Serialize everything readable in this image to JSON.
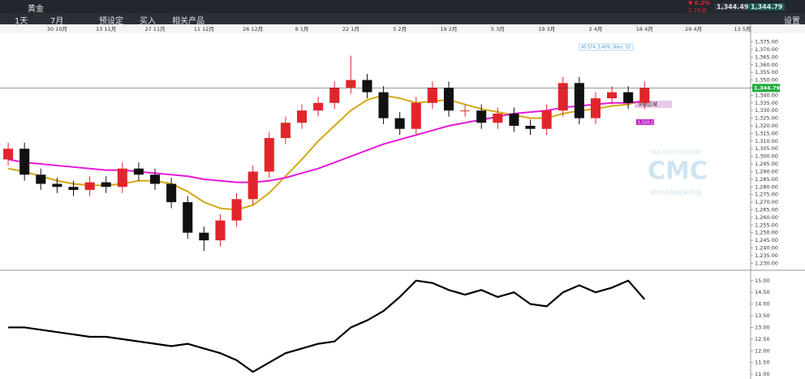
{
  "toolbar": {
    "instrument": "黄金",
    "interval": "1天",
    "range": "7月",
    "preset": "预设定",
    "buy": "买入",
    "related": "相关产品",
    "change_pct": "0.2%",
    "change_pts": "2.78点",
    "bid": "1,344.49",
    "ask": "1,344.79",
    "settings": "设置"
  },
  "annotations": {
    "measure": "45.574, 3.40%, Bars, 33",
    "zone": "突破区域",
    "level": "1,320.21",
    "watermark_top": "TRD PLATFORM BY",
    "watermark_logo": "CMC",
    "watermark_bottom": "stockbroking"
  },
  "chart_data": [
    {
      "type": "candlestick",
      "up_color": "#e0262b",
      "down_color": "#111111",
      "categories": [
        null,
        null,
        null,
        "30 10月",
        null,
        null,
        "13 11月",
        null,
        null,
        "27 11月",
        null,
        null,
        "11 12月",
        null,
        null,
        "26 12月",
        null,
        null,
        "8 1月",
        null,
        null,
        "22 1月",
        null,
        null,
        "5 2月",
        null,
        null,
        "19 2月",
        null,
        null,
        "5 3月",
        null,
        null,
        "19 3月",
        null,
        null,
        "2 4月",
        null,
        null,
        "16 4月",
        null,
        null,
        "29 4月",
        null,
        null,
        "13 5月"
      ],
      "open": [
        1298,
        1305,
        1288,
        1282,
        1280,
        1278,
        1283,
        1280,
        1292,
        1288,
        1282,
        1270,
        1250,
        1245,
        1258,
        1272,
        1290,
        1312,
        1322,
        1330,
        1335,
        1345,
        1350,
        1342,
        1325,
        1318,
        1335,
        1345,
        1330,
        1330,
        1322,
        1328,
        1320,
        1318,
        1330,
        1348,
        1325,
        1338,
        1342,
        1335,
        null,
        null,
        null,
        null,
        null,
        null
      ],
      "high": [
        1309,
        1309,
        1292,
        1286,
        1284,
        1287,
        1287,
        1296,
        1296,
        1292,
        1286,
        1274,
        1254,
        1262,
        1276,
        1294,
        1316,
        1326,
        1334,
        1339,
        1349,
        1366,
        1354,
        1346,
        1329,
        1339,
        1349,
        1349,
        1334,
        1334,
        1332,
        1332,
        1324,
        1334,
        1352,
        1352,
        1342,
        1346,
        1346,
        1349,
        null,
        null,
        null,
        null,
        null,
        null
      ],
      "low": [
        1294,
        1284,
        1278,
        1276,
        1274,
        1274,
        1276,
        1276,
        1284,
        1278,
        1266,
        1246,
        1238,
        1241,
        1254,
        1268,
        1286,
        1308,
        1318,
        1326,
        1331,
        1341,
        1338,
        1321,
        1314,
        1314,
        1331,
        1326,
        1326,
        1318,
        1318,
        1316,
        1314,
        1314,
        1326,
        1321,
        1321,
        1334,
        1331,
        1331,
        null,
        null,
        null,
        null,
        null,
        null
      ],
      "close": [
        1305,
        1288,
        1282,
        1280,
        1278,
        1283,
        1280,
        1292,
        1288,
        1282,
        1270,
        1250,
        1245,
        1258,
        1272,
        1290,
        1312,
        1322,
        1330,
        1335,
        1345,
        1350,
        1342,
        1325,
        1318,
        1335,
        1345,
        1330,
        1330,
        1322,
        1328,
        1320,
        1318,
        1330,
        1348,
        1325,
        1338,
        1342,
        1335,
        1344.79,
        null,
        null,
        null,
        null,
        null,
        null
      ],
      "series": [
        {
          "color": "#d4a814",
          "values": [
            1292,
            1290,
            1287,
            1284,
            1282,
            1281,
            1281,
            1282,
            1284,
            1284,
            1282,
            1277,
            1270,
            1266,
            1265,
            1268,
            1276,
            1287,
            1298,
            1310,
            1320,
            1330,
            1337,
            1340,
            1338,
            1335,
            1336,
            1337,
            1334,
            1331,
            1329,
            1327,
            1325,
            1325,
            1328,
            1330,
            1331,
            1333,
            1334,
            1337,
            null,
            null,
            null,
            null,
            null,
            null
          ]
        },
        {
          "color": "#e619d8",
          "values": [
            1298,
            1296,
            1295,
            1294,
            1293,
            1292,
            1291,
            1291,
            1290,
            1289,
            1288,
            1287,
            1285,
            1284,
            1283,
            1283,
            1284,
            1286,
            1289,
            1292,
            1296,
            1300,
            1304,
            1308,
            1311,
            1314,
            1317,
            1320,
            1322,
            1324,
            1326,
            1328,
            1329,
            1330,
            1332,
            1333,
            1334,
            1335,
            1335,
            1336,
            null,
            null,
            null,
            null,
            null,
            null
          ]
        }
      ],
      "last_price": {
        "value": 1344.79,
        "label": "1,344.79"
      },
      "ylim": [
        1227,
        1379
      ],
      "yticks": [
        {
          "value": 1230,
          "label": "1,230.00"
        },
        {
          "value": 1235,
          "label": "1,235.00"
        },
        {
          "value": 1240,
          "label": "1,240.00"
        },
        {
          "value": 1245,
          "label": "1,245.00"
        },
        {
          "value": 1250,
          "label": "1,250.00"
        },
        {
          "value": 1255,
          "label": "1,255.00"
        },
        {
          "value": 1260,
          "label": "1,260.00"
        },
        {
          "value": 1265,
          "label": "1,265.00"
        },
        {
          "value": 1270,
          "label": "1,270.00"
        },
        {
          "value": 1275,
          "label": "1,275.00"
        },
        {
          "value": 1280,
          "label": "1,280.00"
        },
        {
          "value": 1285,
          "label": "1,285.00"
        },
        {
          "value": 1290,
          "label": "1,290.00"
        },
        {
          "value": 1295,
          "label": "1,295.00"
        },
        {
          "value": 1300,
          "label": "1,300.00"
        },
        {
          "value": 1305,
          "label": "1,305.00"
        },
        {
          "value": 1310,
          "label": "1,310.00"
        },
        {
          "value": 1315,
          "label": "1,315.00"
        },
        {
          "value": 1320,
          "label": "1,320.00"
        },
        {
          "value": 1325,
          "label": "1,325.00"
        },
        {
          "value": 1330,
          "label": "1,330.00"
        },
        {
          "value": 1335,
          "label": "1,335.00"
        },
        {
          "value": 1340,
          "label": "1,340.00"
        },
        {
          "value": 1345,
          "label": "1,345.00"
        },
        {
          "value": 1350,
          "label": "1,350.00"
        },
        {
          "value": 1355,
          "label": "1,355.00"
        },
        {
          "value": 1360,
          "label": "1,360.00"
        },
        {
          "value": 1365,
          "label": "1,365.00"
        },
        {
          "value": 1370,
          "label": "1,370.00"
        },
        {
          "value": 1375,
          "label": "1,375.00"
        }
      ]
    },
    {
      "type": "line",
      "color": "#000000",
      "values": [
        13.0,
        13.0,
        12.9,
        12.8,
        12.7,
        12.6,
        12.6,
        12.5,
        12.4,
        12.3,
        12.2,
        12.3,
        12.1,
        11.9,
        11.6,
        11.1,
        11.5,
        11.9,
        12.1,
        12.3,
        12.4,
        13.0,
        13.3,
        13.7,
        14.3,
        15.0,
        14.9,
        14.6,
        14.4,
        14.6,
        14.3,
        14.5,
        14.0,
        13.9,
        14.5,
        14.8,
        14.5,
        14.7,
        15.0,
        14.2,
        null,
        null,
        null,
        null,
        null,
        null
      ],
      "ylim": [
        10.9,
        15.2
      ],
      "yticks": [
        {
          "value": 11,
          "label": "11.00"
        },
        {
          "value": 11.5,
          "label": "11.50"
        },
        {
          "value": 12,
          "label": "12.00"
        },
        {
          "value": 12.5,
          "label": "12.50"
        },
        {
          "value": 13,
          "label": "13.00"
        },
        {
          "value": 13.5,
          "label": "13.50"
        },
        {
          "value": 14,
          "label": "14.00"
        },
        {
          "value": 14.5,
          "label": "14.50"
        },
        {
          "value": 15,
          "label": "15.00"
        }
      ]
    }
  ]
}
